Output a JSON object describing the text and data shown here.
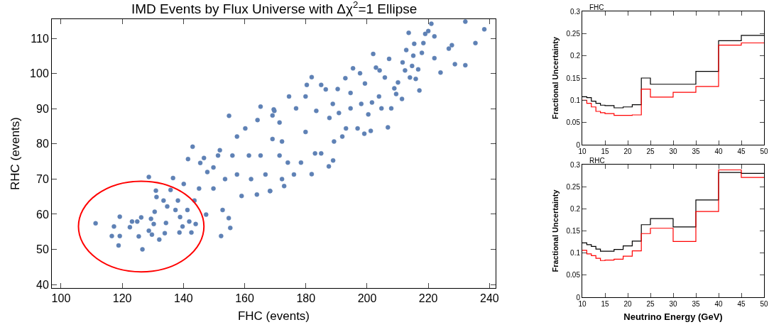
{
  "chart_data": [
    {
      "type": "scatter",
      "title": "IMD Events by Flux Universe with Δχ$^{2}$=1 Ellipse",
      "xlabel": "FHC (events)",
      "ylabel": "RHC (events)",
      "xlim": [
        97,
        242
      ],
      "ylim": [
        39,
        115.5
      ],
      "xticks": [
        100,
        120,
        140,
        160,
        180,
        200,
        220,
        240
      ],
      "yticks": [
        40,
        50,
        60,
        70,
        80,
        90,
        100,
        110
      ],
      "marker": "circle",
      "color": "#5e81b5",
      "x": [
        111.3,
        116.6,
        117.3,
        119.2,
        119.2,
        118.8,
        122.5,
        123.2,
        124.9,
        125.4,
        126.2,
        126.6,
        128.7,
        129.7,
        129.4,
        130.3,
        130.6,
        132.1,
        131.2,
        131.0,
        128.7,
        133.5,
        134.7,
        133.9,
        134.3,
        135.8,
        136.6,
        137.4,
        138.2,
        138.9,
        138.7,
        139.7,
        140.1,
        141.3,
        141.5,
        141.9,
        142.6,
        143.0,
        143.6,
        144.0,
        145.1,
        145.5,
        146.7,
        147.4,
        147.8,
        149.8,
        149.8,
        151.3,
        151.9,
        152.3,
        152.8,
        153.6,
        154.8,
        154.9,
        155.3,
        156.0,
        157.5,
        157.5,
        159.0,
        160.2,
        161.4,
        162.1,
        164.0,
        164.2,
        165.2,
        165.2,
        166.8,
        168.3,
        169.1,
        169.7,
        171.4,
        172.2,
        169.5,
        169.1,
        168.3,
        172.9,
        174.5,
        171.4,
        172.2,
        174.1,
        176.1,
        176.8,
        178.4,
        179.9,
        180.3,
        179.9,
        181.9,
        181.9,
        183.0,
        183.4,
        185.0,
        185.0,
        186.5,
        187.5,
        187.7,
        188.8,
        188.9,
        189.2,
        190.4,
        190.8,
        191.9,
        192.9,
        193.1,
        194.6,
        194.6,
        195.4,
        196.9,
        197.7,
        198.1,
        199.1,
        199.3,
        200.4,
        201.2,
        202.0,
        201.6,
        202.9,
        203.9,
        204.1,
        204.7,
        205.8,
        206.8,
        207.2,
        207.9,
        208.9,
        209.5,
        210.1,
        211.4,
        211.6,
        212.4,
        212.8,
        213.6,
        214.0,
        214.7,
        215.1,
        215.4,
        215.9,
        216.7,
        217.1,
        217.9,
        218.4,
        219.0,
        220.0,
        221.0,
        222.0,
        222.0,
        224.0,
        226.7,
        227.7,
        228.7,
        232.1,
        232.1,
        235.4,
        238.3
      ],
      "values": [
        57.4,
        53.8,
        56.5,
        59.3,
        53.8,
        51.1,
        56.3,
        57.9,
        57.9,
        53.7,
        59.1,
        50.0,
        55.3,
        54.2,
        58.7,
        57.2,
        60.7,
        52.8,
        64.9,
        66.7,
        70.6,
        63.9,
        62.2,
        54.6,
        57.5,
        66.9,
        70.3,
        61.2,
        63.9,
        59.2,
        54.8,
        56.5,
        68.6,
        61.2,
        75.7,
        57.9,
        54.8,
        79.2,
        63.9,
        57.2,
        67.3,
        74.6,
        76.0,
        59.9,
        72.0,
        67.3,
        73.3,
        76.7,
        78.2,
        53.8,
        61.2,
        70.0,
        58.9,
        88.0,
        56.1,
        76.7,
        82.1,
        71.3,
        65.2,
        84.4,
        76.7,
        70.0,
        65.6,
        86.8,
        90.6,
        76.7,
        71.3,
        66.6,
        81.4,
        89.4,
        76.7,
        70.0,
        89.8,
        88.1,
        66.6,
        68.0,
        93.5,
        86.1,
        80.7,
        74.7,
        71.3,
        90.1,
        74.7,
        93.5,
        96.8,
        83.4,
        71.4,
        99.0,
        77.3,
        89.4,
        96.8,
        77.3,
        95.5,
        73.6,
        87.4,
        91.4,
        75.3,
        80.7,
        95.6,
        88.8,
        82.1,
        98.7,
        84.4,
        94.5,
        90.1,
        101.5,
        84.4,
        100.1,
        91.4,
        82.9,
        97.2,
        88.4,
        83.7,
        105.6,
        91.8,
        101.7,
        93.5,
        100.9,
        90.1,
        98.9,
        84.7,
        104.2,
        90.1,
        95.8,
        94.2,
        97.5,
        92.8,
        103.2,
        100.9,
        106.7,
        111.6,
        98.9,
        102.2,
        105.1,
        108.5,
        98.5,
        101.2,
        95.2,
        105.9,
        108.7,
        111.3,
        112.1,
        114.2,
        110.6,
        104.4,
        100.3,
        107.1,
        108.1,
        102.7,
        102.4,
        114.8,
        108.7,
        112.6
      ]
    },
    {
      "type": "histogram",
      "title": "FHC",
      "ylabel": "Fractional Uncertainty",
      "xlim": [
        10,
        50
      ],
      "ylim": [
        0,
        0.3
      ],
      "xticks": [
        10,
        15,
        20,
        25,
        30,
        35,
        40,
        45,
        50
      ],
      "yticks": [
        0,
        0.05,
        0.1,
        0.15,
        0.2,
        0.25,
        0.3
      ],
      "bins": [
        10,
        11,
        12,
        13,
        14,
        15,
        17,
        19,
        21,
        23,
        25,
        30,
        35,
        40,
        45,
        50
      ],
      "series": [
        {
          "color": "#000000",
          "values": [
            0.108,
            0.106,
            0.098,
            0.093,
            0.089,
            0.088,
            0.083,
            0.085,
            0.09,
            0.15,
            0.136,
            0.136,
            0.165,
            0.234,
            0.246
          ]
        },
        {
          "color": "#ff0000",
          "values": [
            0.1,
            0.093,
            0.085,
            0.075,
            0.072,
            0.07,
            0.066,
            0.066,
            0.067,
            0.125,
            0.107,
            0.118,
            0.131,
            0.224,
            0.229
          ]
        }
      ]
    },
    {
      "type": "histogram",
      "title": "RHC",
      "ylabel": "Fractional Uncertainty",
      "xlabel": "Neutrino Energy (GeV)",
      "xlim": [
        10,
        50
      ],
      "ylim": [
        0,
        0.3
      ],
      "xticks": [
        10,
        15,
        20,
        25,
        30,
        35,
        40,
        45,
        50
      ],
      "yticks": [
        0,
        0.05,
        0.1,
        0.15,
        0.2,
        0.25,
        0.3
      ],
      "bins": [
        10,
        11,
        12,
        13,
        14,
        15,
        17,
        19,
        21,
        23,
        25,
        30,
        35,
        40,
        45,
        50
      ],
      "series": [
        {
          "color": "#000000",
          "values": [
            0.123,
            0.119,
            0.115,
            0.109,
            0.104,
            0.104,
            0.108,
            0.116,
            0.127,
            0.164,
            0.178,
            0.159,
            0.22,
            0.282,
            0.28
          ]
        },
        {
          "color": "#ff0000",
          "values": [
            0.106,
            0.098,
            0.094,
            0.088,
            0.083,
            0.084,
            0.086,
            0.093,
            0.105,
            0.144,
            0.156,
            0.126,
            0.194,
            0.288,
            0.271
          ]
        }
      ]
    }
  ]
}
